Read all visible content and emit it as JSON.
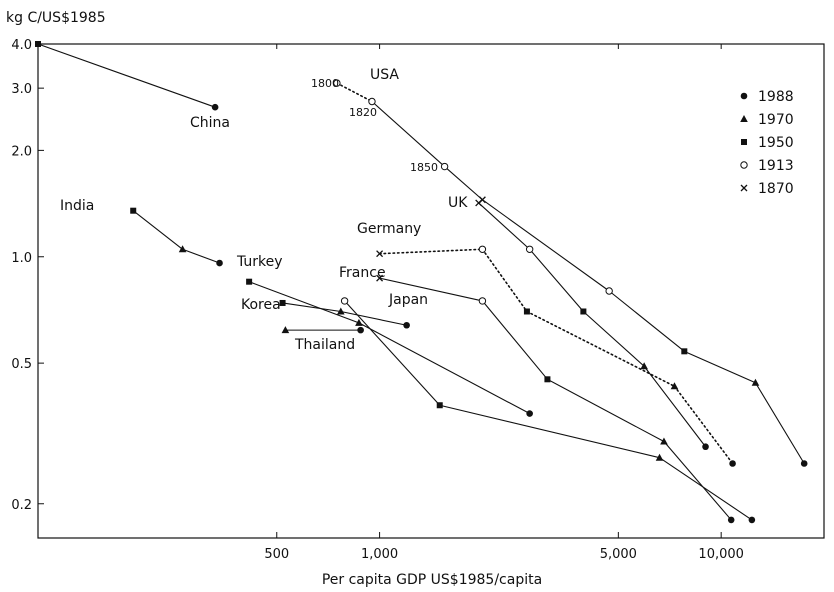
{
  "chart_data": {
    "type": "line",
    "ylabel": "kg C/US$1985",
    "xlabel": "Per capita GDP US$1985/capita",
    "x_scale": "log",
    "y_scale": "log",
    "xlim": [
      100,
      20000
    ],
    "ylim": [
      0.16,
      4.0
    ],
    "x_ticks": [
      {
        "value": 500,
        "label": "500"
      },
      {
        "value": 1000,
        "label": "1,000"
      },
      {
        "value": 5000,
        "label": "5,000"
      },
      {
        "value": 10000,
        "label": "10,000"
      }
    ],
    "y_ticks": [
      {
        "value": 4.0,
        "label": "4.0"
      },
      {
        "value": 3.0,
        "label": "3.0"
      },
      {
        "value": 2.0,
        "label": "2.0"
      },
      {
        "value": 1.0,
        "label": "1.0"
      },
      {
        "value": 0.5,
        "label": "0.5"
      },
      {
        "value": 0.2,
        "label": "0.2"
      }
    ],
    "legend": {
      "placement": "top-right",
      "entries": [
        {
          "label": "1988",
          "marker": "filled-circle"
        },
        {
          "label": "1970",
          "marker": "filled-triangle"
        },
        {
          "label": "1950",
          "marker": "filled-square"
        },
        {
          "label": "1913",
          "marker": "open-diamond"
        },
        {
          "label": "1870",
          "marker": "cross"
        }
      ]
    },
    "series": [
      {
        "name": "China",
        "style": "solid",
        "points": [
          {
            "x": 100,
            "y": 4.0,
            "m": "1950"
          },
          {
            "x": 330,
            "y": 2.65,
            "m": "1988"
          }
        ]
      },
      {
        "name": "USA",
        "style": "solid",
        "points": [
          {
            "x": 750,
            "y": 3.1,
            "m": "1913",
            "year": "1800",
            "dotted_to_next": true
          },
          {
            "x": 950,
            "y": 2.75,
            "m": "1913",
            "year": "1820"
          },
          {
            "x": 1550,
            "y": 1.8,
            "m": "1913",
            "year": "1850"
          },
          {
            "x": 2000,
            "y": 1.45,
            "m": "1870"
          },
          {
            "x": 4700,
            "y": 0.8,
            "m": "1913"
          },
          {
            "x": 7800,
            "y": 0.54,
            "m": "1950"
          },
          {
            "x": 12600,
            "y": 0.44,
            "m": "1970"
          },
          {
            "x": 17500,
            "y": 0.26,
            "m": "1988"
          }
        ]
      },
      {
        "name": "UK",
        "style": "solid",
        "points": [
          {
            "x": 1950,
            "y": 1.42,
            "m": "1870"
          },
          {
            "x": 2750,
            "y": 1.05,
            "m": "1913"
          },
          {
            "x": 3950,
            "y": 0.7,
            "m": "1950"
          },
          {
            "x": 5950,
            "y": 0.49,
            "m": "1970"
          },
          {
            "x": 9000,
            "y": 0.29,
            "m": "1988"
          }
        ]
      },
      {
        "name": "Germany",
        "style": "dotted",
        "points": [
          {
            "x": 1000,
            "y": 1.02,
            "m": "1870"
          },
          {
            "x": 2000,
            "y": 1.05,
            "m": "1913"
          },
          {
            "x": 2700,
            "y": 0.7,
            "m": "1950"
          },
          {
            "x": 7300,
            "y": 0.43,
            "m": "1970"
          },
          {
            "x": 10800,
            "y": 0.26,
            "m": "1988"
          }
        ]
      },
      {
        "name": "France",
        "style": "solid",
        "points": [
          {
            "x": 1000,
            "y": 0.87,
            "m": "1870"
          },
          {
            "x": 2000,
            "y": 0.75,
            "m": "1913"
          },
          {
            "x": 3100,
            "y": 0.45,
            "m": "1950"
          },
          {
            "x": 6800,
            "y": 0.3,
            "m": "1970"
          },
          {
            "x": 10700,
            "y": 0.18,
            "m": "1988"
          }
        ]
      },
      {
        "name": "Japan",
        "style": "solid",
        "points": [
          {
            "x": 790,
            "y": 0.75,
            "m": "1913"
          },
          {
            "x": 1500,
            "y": 0.38,
            "m": "1950"
          },
          {
            "x": 6600,
            "y": 0.27,
            "m": "1970"
          },
          {
            "x": 12300,
            "y": 0.18,
            "m": "1988"
          }
        ]
      },
      {
        "name": "India",
        "style": "solid",
        "points": [
          {
            "x": 190,
            "y": 1.35,
            "m": "1950"
          },
          {
            "x": 265,
            "y": 1.05,
            "m": "1970"
          },
          {
            "x": 340,
            "y": 0.96,
            "m": "1988"
          }
        ]
      },
      {
        "name": "Turkey",
        "style": "solid",
        "points": [
          {
            "x": 415,
            "y": 0.85,
            "m": "1950"
          },
          {
            "x": 870,
            "y": 0.65,
            "m": "1970"
          },
          {
            "x": 2750,
            "y": 0.36,
            "m": "1988"
          }
        ]
      },
      {
        "name": "Korea",
        "style": "solid",
        "points": [
          {
            "x": 520,
            "y": 0.74,
            "m": "1950"
          },
          {
            "x": 770,
            "y": 0.7,
            "m": "1970"
          },
          {
            "x": 1200,
            "y": 0.64,
            "m": "1988"
          }
        ]
      },
      {
        "name": "Thailand",
        "style": "solid",
        "points": [
          {
            "x": 530,
            "y": 0.62,
            "m": "1970"
          },
          {
            "x": 880,
            "y": 0.62,
            "m": "1988"
          }
        ]
      }
    ],
    "labels": [
      {
        "text": "China",
        "kind": "country"
      },
      {
        "text": "USA",
        "kind": "country"
      },
      {
        "text": "UK",
        "kind": "country"
      },
      {
        "text": "Germany",
        "kind": "country"
      },
      {
        "text": "France",
        "kind": "country"
      },
      {
        "text": "Japan",
        "kind": "country"
      },
      {
        "text": "India",
        "kind": "country"
      },
      {
        "text": "Turkey",
        "kind": "country"
      },
      {
        "text": "Korea",
        "kind": "country"
      },
      {
        "text": "Thailand",
        "kind": "country"
      },
      {
        "text": "1800",
        "kind": "year"
      },
      {
        "text": "1820",
        "kind": "year"
      },
      {
        "text": "1850",
        "kind": "year"
      }
    ]
  }
}
